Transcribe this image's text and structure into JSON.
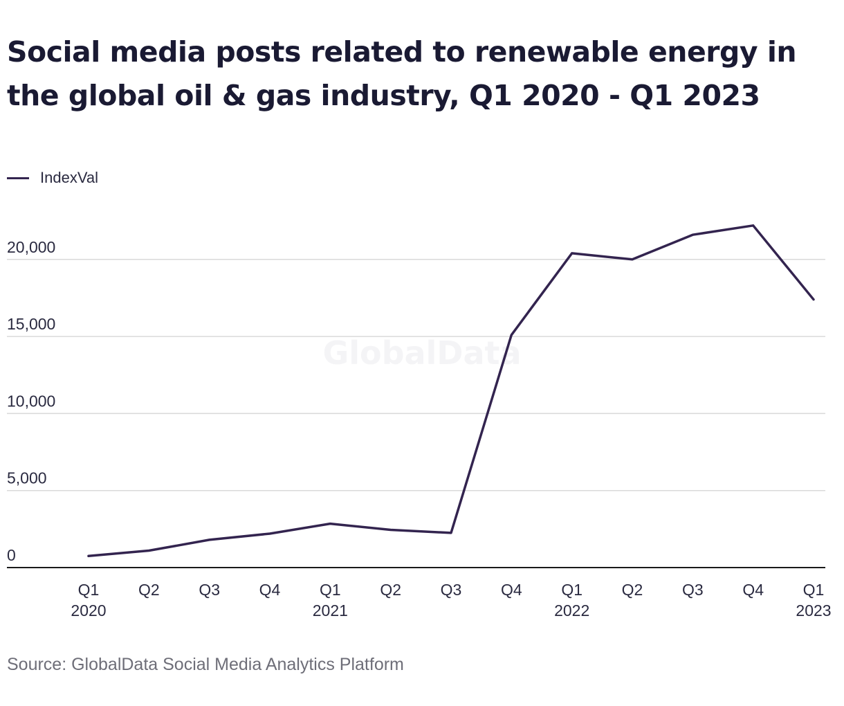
{
  "title": "Social media posts related to renewable energy in the global oil & gas industry, Q1 2020 - Q1 2023",
  "source": "Source: GlobalData Social Media Analytics Platform",
  "watermark": "GlobalData",
  "colors": {
    "line": "#33244f",
    "grid": "#d9d9d9",
    "axis": "#1a1a1a",
    "text": "#2a2a40"
  },
  "chart_data": {
    "type": "line",
    "title": "Social media posts related to renewable energy in the global oil & gas industry, Q1 2020 - Q1 2023",
    "xlabel": "",
    "ylabel": "",
    "categories": [
      {
        "quarter": "Q1",
        "year": "2020"
      },
      {
        "quarter": "Q2",
        "year": ""
      },
      {
        "quarter": "Q3",
        "year": ""
      },
      {
        "quarter": "Q4",
        "year": ""
      },
      {
        "quarter": "Q1",
        "year": "2021"
      },
      {
        "quarter": "Q2",
        "year": ""
      },
      {
        "quarter": "Q3",
        "year": ""
      },
      {
        "quarter": "Q4",
        "year": ""
      },
      {
        "quarter": "Q1",
        "year": "2022"
      },
      {
        "quarter": "Q2",
        "year": ""
      },
      {
        "quarter": "Q3",
        "year": ""
      },
      {
        "quarter": "Q4",
        "year": ""
      },
      {
        "quarter": "Q1",
        "year": "2023"
      }
    ],
    "series": [
      {
        "name": "IndexVal",
        "values": [
          750,
          1100,
          1800,
          2200,
          2850,
          2450,
          2250,
          15100,
          20400,
          20000,
          21600,
          22200,
          17400
        ]
      }
    ],
    "ylim": [
      0,
      22200
    ],
    "yticks": [
      0,
      5000,
      10000,
      15000,
      20000
    ],
    "ytick_labels": [
      "0",
      "5,000",
      "10,000",
      "15,000",
      "20,000"
    ],
    "grid": true,
    "legend": "top-left"
  }
}
